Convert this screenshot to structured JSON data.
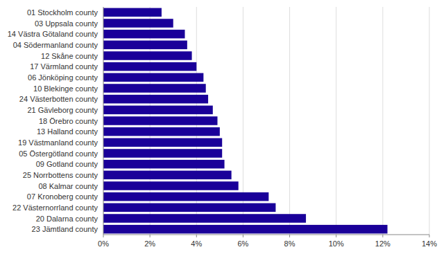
{
  "chart_data": {
    "type": "bar",
    "orientation": "horizontal",
    "categories": [
      "01 Stockholm county",
      "03 Uppsala county",
      "14 Västra Götaland county",
      "04 Södermanland county",
      "12 Skåne county",
      "17 Värmland county",
      "06 Jönköping county",
      "10 Blekinge county",
      "24 Västerbotten county",
      "21 Gävleborg county",
      "18 Örebro county",
      "13 Halland county",
      "19 Västmanland county",
      "05 Östergötland county",
      "09 Gotland county",
      "25 Norrbottens county",
      "08 Kalmar county",
      "07 Kronoberg county",
      "22 Västernorrland county",
      "20 Dalarna county",
      "23 Jämtland county"
    ],
    "values": [
      2.5,
      3.0,
      3.5,
      3.6,
      3.8,
      4.0,
      4.3,
      4.4,
      4.5,
      4.7,
      4.9,
      5.0,
      5.1,
      5.1,
      5.2,
      5.5,
      5.8,
      7.1,
      7.4,
      8.7,
      12.2
    ],
    "color": "#1a0099",
    "xlim": [
      0,
      14
    ],
    "xticks": [
      {
        "value": 0,
        "label": "0%"
      },
      {
        "value": 2,
        "label": "2%"
      },
      {
        "value": 4,
        "label": "4%"
      },
      {
        "value": 6,
        "label": "6%"
      },
      {
        "value": 8,
        "label": "8%"
      },
      {
        "value": 10,
        "label": "10%"
      },
      {
        "value": 12,
        "label": "12%"
      },
      {
        "value": 14,
        "label": "14%"
      }
    ],
    "grid": true
  }
}
